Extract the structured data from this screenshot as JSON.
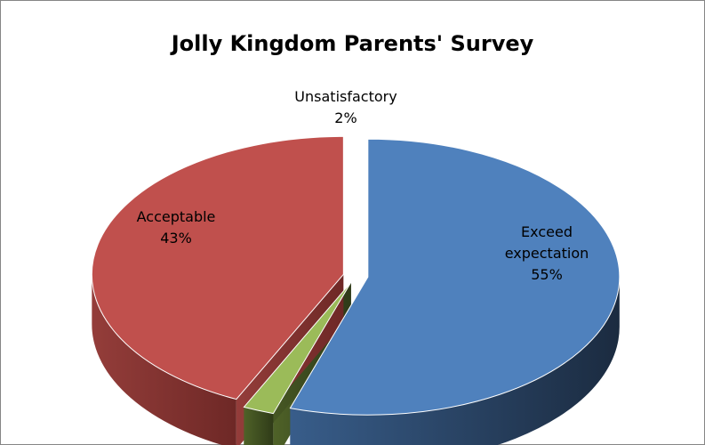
{
  "chart_data": {
    "type": "pie",
    "style": "3d-exploded",
    "title": "Jolly Kingdom Parents' Survey",
    "legend": "none",
    "slices": [
      {
        "label": "Exceed expectation",
        "value": 55,
        "display": "55%",
        "color": "#4F81BD"
      },
      {
        "label": "Unsatisfactory",
        "value": 2,
        "display": "2%",
        "color": "#9BBB59"
      },
      {
        "label": "Acceptable",
        "value": 43,
        "display": "43%",
        "color": "#C0504D"
      }
    ]
  }
}
